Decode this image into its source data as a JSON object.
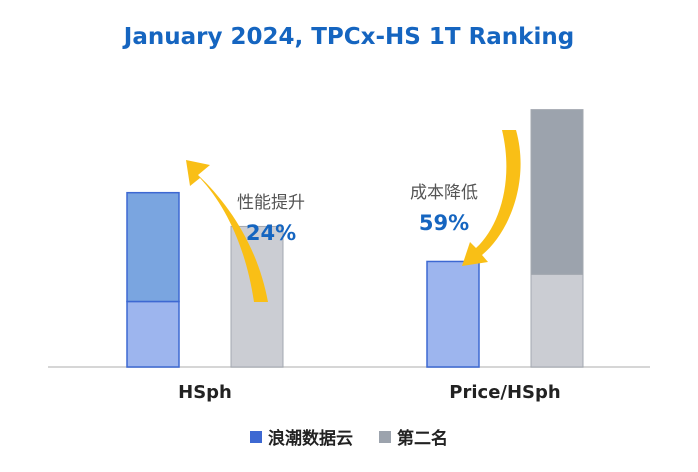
{
  "colors": {
    "title": "#1565c0",
    "accent": "#1565c0",
    "arrow": "#f9bf16",
    "inspur_top": "#7aa5e0",
    "inspur_bottom": "#9db5ee",
    "inspur_border": "#3d68d2",
    "second_top": "#9ca3ad",
    "second_bottom": "#cbcdd3",
    "second_border": "#a3a8b0",
    "axis": "#d6d6d6"
  },
  "chart_data": {
    "type": "bar",
    "title": "January 2024, TPCx-HS 1T Ranking",
    "categories": [
      "HSph",
      "Price/HSph"
    ],
    "series": [
      {
        "name": "浪潮数据云",
        "values": [
          1.24,
          0.41
        ]
      },
      {
        "name": "第二名",
        "values": [
          1.0,
          1.0
        ]
      }
    ],
    "annotations": [
      {
        "category": "HSph",
        "text": "性能提升",
        "value": "24%"
      },
      {
        "category": "Price/HSph",
        "text": "成本降低",
        "value": "59%"
      }
    ],
    "legend_position": "bottom",
    "grid": false
  }
}
